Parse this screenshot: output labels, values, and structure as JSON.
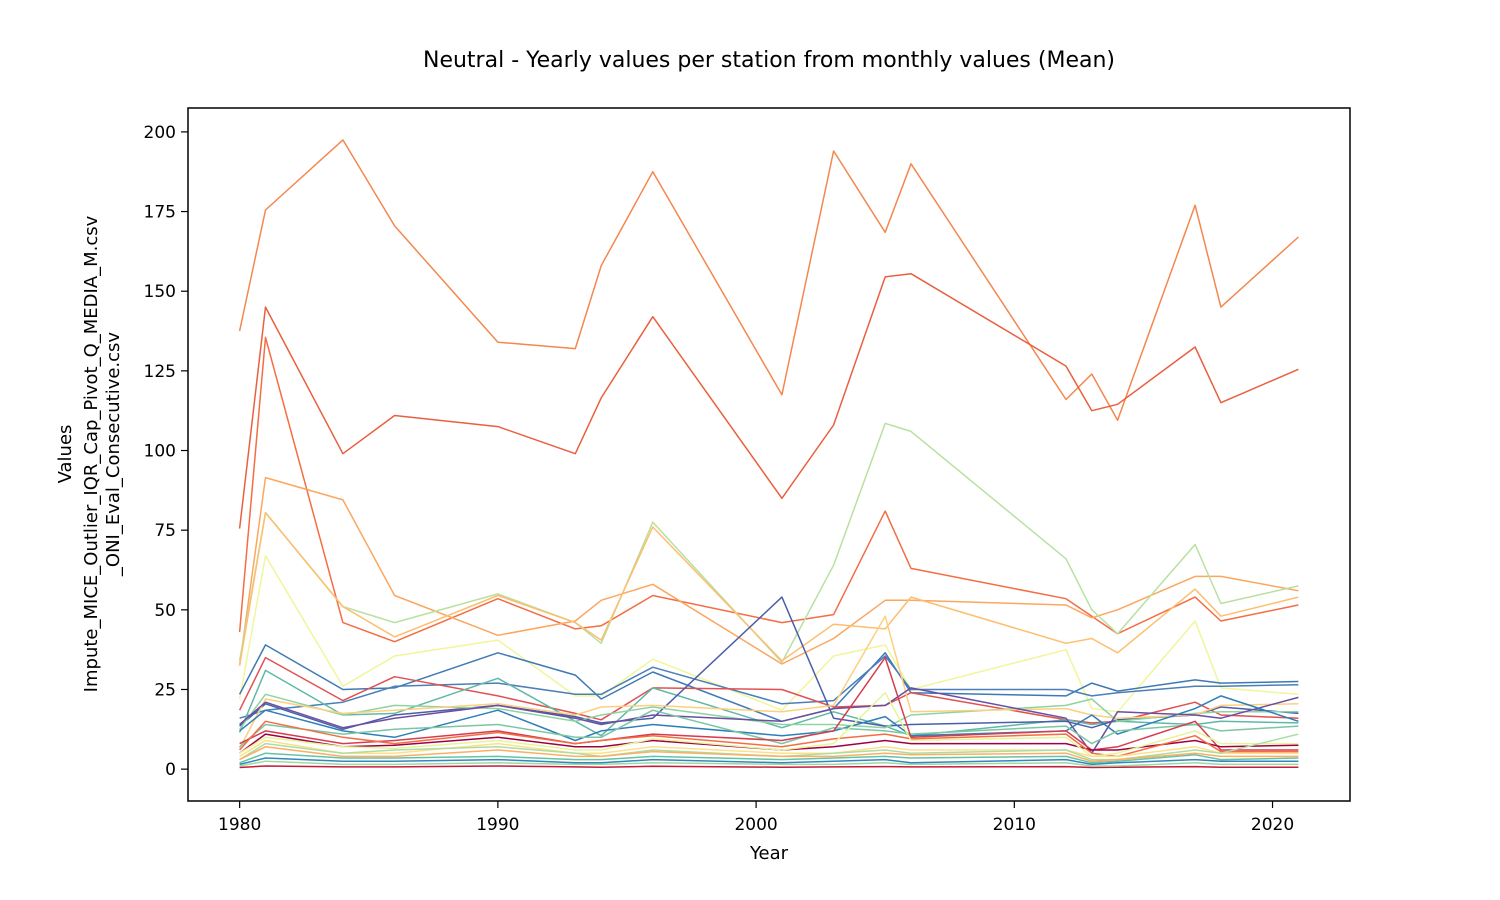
{
  "chart_data": {
    "type": "line",
    "title": "Neutral - Yearly values per station from monthly values (Mean)",
    "xlabel": "Year",
    "ylabel": [
      "Values",
      "Impute_MICE_Outlier_IQR_Cap_Pivot_Q_MEDIA_M.csv",
      "_ONI_Eval_Consecutive.csv"
    ],
    "xlim": [
      1978,
      2023
    ],
    "ylim": [
      -10,
      207.5
    ],
    "xticks": [
      1980,
      1990,
      2000,
      2010,
      2020
    ],
    "yticks": [
      0,
      25,
      50,
      75,
      100,
      125,
      150,
      175,
      200
    ],
    "grid": false,
    "legend": "none",
    "x": [
      1980,
      1981,
      1984,
      1986,
      1990,
      1993,
      1994,
      1996,
      2001,
      2003,
      2005,
      2006,
      2012,
      2013,
      2014,
      2017,
      2018,
      2021
    ],
    "series": [
      {
        "color": "#f4874f",
        "values": [
          137.5,
          175.5,
          197.5,
          170.5,
          134,
          132,
          158,
          187.5,
          117.5,
          194,
          168.5,
          190,
          116,
          124,
          109.5,
          177,
          145,
          167
        ]
      },
      {
        "color": "#e8603f",
        "values": [
          75.5,
          145,
          99,
          111,
          107.5,
          99,
          116.5,
          142,
          85,
          108,
          154.5,
          155.5,
          126.5,
          112.5,
          114.5,
          132.5,
          115,
          125.5
        ]
      },
      {
        "color": "#f46d43",
        "values": [
          43,
          135.5,
          46,
          40,
          53.5,
          44,
          45,
          54.5,
          46,
          48.5,
          81,
          63,
          53.5,
          48,
          42.5,
          54,
          46.5,
          51.5
        ]
      },
      {
        "color": "#fca65e",
        "values": [
          32.5,
          91.5,
          84.5,
          54.5,
          42,
          46.5,
          53,
          58,
          33,
          41,
          53,
          53,
          51.5,
          47.5,
          50,
          60.5,
          60.5,
          56
        ]
      },
      {
        "color": "#b9e0a1",
        "values": [
          34,
          80.5,
          51,
          46,
          55,
          46,
          39.5,
          77.5,
          33.5,
          64,
          108.5,
          106,
          66,
          50,
          42.5,
          70.5,
          52,
          57.5
        ]
      },
      {
        "color": "#fdbe6e",
        "values": [
          32.5,
          80.5,
          51,
          41.5,
          54.5,
          46,
          40.5,
          76,
          34,
          45.5,
          44,
          54,
          39.5,
          41,
          36.5,
          56.5,
          48,
          54
        ]
      },
      {
        "color": "#f1f59b",
        "values": [
          22,
          67,
          26,
          35.5,
          40.5,
          23,
          23,
          34.5,
          18.5,
          35.5,
          39,
          25,
          37.5,
          19,
          18,
          46.5,
          25.5,
          23.5
        ]
      },
      {
        "color": "#3f79b5",
        "values": [
          23.5,
          39,
          25,
          25.5,
          36.5,
          29.5,
          22,
          30.5,
          15,
          19,
          36.5,
          24,
          23,
          27,
          24.5,
          28,
          27,
          27.5
        ]
      },
      {
        "color": "#4a7fb8",
        "values": [
          16,
          18.5,
          21,
          26,
          27,
          23.5,
          23.5,
          32,
          20.5,
          21.5,
          35.5,
          25,
          25,
          23,
          24,
          26,
          26,
          26.5
        ]
      },
      {
        "color": "#e05252",
        "values": [
          18.5,
          35,
          21.5,
          29,
          23,
          17.5,
          15.5,
          25.5,
          25,
          19.5,
          20,
          24,
          15.5,
          14.5,
          15,
          21,
          17,
          16
        ]
      },
      {
        "color": "#5fb9a6",
        "values": [
          11.5,
          31,
          17,
          17.5,
          28.5,
          15,
          10.5,
          25.5,
          13,
          18,
          13.5,
          10.5,
          15.5,
          14,
          15,
          14,
          15,
          14.5
        ]
      },
      {
        "color": "#4c5ea8",
        "values": [
          13.5,
          20.5,
          12.5,
          17,
          20,
          16.5,
          14.5,
          16,
          54,
          16,
          13.5,
          14,
          15,
          13,
          15.5,
          17,
          19.5,
          17.5
        ]
      },
      {
        "color": "#8fd3a4",
        "values": [
          12.5,
          23.5,
          17,
          20,
          19,
          15,
          17,
          19.5,
          14,
          14,
          13,
          17,
          20,
          22,
          15,
          17.5,
          18,
          18
        ]
      },
      {
        "color": "#fdd07f",
        "values": [
          6.5,
          22,
          17.5,
          18.5,
          20.5,
          17,
          19.5,
          20,
          18,
          20,
          48,
          18,
          19,
          17,
          16,
          17,
          20,
          20.5
        ]
      },
      {
        "color": "#6a4fa0",
        "values": [
          14,
          21,
          13,
          16,
          20,
          16,
          14,
          17,
          15,
          19,
          20,
          25.5,
          16,
          5,
          18,
          17,
          16,
          22.5
        ]
      },
      {
        "color": "#2e7fb8",
        "values": [
          12,
          18.5,
          12,
          10,
          18.5,
          9,
          12,
          14,
          10.5,
          12,
          16.5,
          10.5,
          12,
          17,
          11,
          19,
          23,
          15
        ]
      },
      {
        "color": "#7cc6a4",
        "values": [
          7,
          14,
          11,
          12.5,
          14,
          10,
          10,
          18.5,
          8,
          13,
          12,
          11,
          13.5,
          8,
          12,
          14,
          12,
          13.5
        ]
      },
      {
        "color": "#d53e4f",
        "values": [
          8,
          12,
          8,
          9,
          12,
          8,
          9,
          11,
          9,
          12,
          35,
          10,
          12,
          6,
          7,
          15,
          6,
          6
        ]
      },
      {
        "color": "#9e0142",
        "values": [
          5,
          11,
          7,
          7.5,
          10,
          7,
          7,
          9,
          6,
          7,
          9,
          8,
          8,
          6,
          6,
          9,
          7,
          7.5
        ]
      },
      {
        "color": "#f46d43",
        "values": [
          6,
          15,
          10,
          8,
          11.5,
          8,
          9,
          10.5,
          7,
          9.5,
          11,
          9.5,
          11,
          5,
          4,
          10.5,
          5.5,
          5.5
        ]
      },
      {
        "color": "#e6f598",
        "values": [
          5,
          10,
          7,
          6.5,
          9,
          6,
          6,
          9.5,
          6,
          8,
          24,
          9,
          10,
          4,
          5,
          12,
          8,
          8
        ]
      },
      {
        "color": "#fee08b",
        "values": [
          4,
          9,
          5,
          5,
          8,
          5,
          5,
          7,
          5,
          5,
          7,
          6,
          6,
          4,
          4,
          7,
          5,
          5
        ]
      },
      {
        "color": "#abdda4",
        "values": [
          3,
          8,
          5,
          6,
          7,
          5,
          4,
          6,
          4,
          5,
          6,
          5,
          6,
          3,
          3,
          6,
          5,
          11
        ]
      },
      {
        "color": "#66c2a5",
        "values": [
          2,
          5,
          3.5,
          3.5,
          4,
          3,
          3,
          4,
          3,
          3.5,
          4,
          3.5,
          4,
          2,
          2.5,
          4.5,
          3,
          3.5
        ]
      },
      {
        "color": "#3288bd",
        "values": [
          1.5,
          3.5,
          2.5,
          2.5,
          3,
          2,
          2,
          3,
          2,
          2.5,
          3,
          2,
          3,
          1.5,
          2,
          3,
          2.5,
          2.5
        ]
      },
      {
        "color": "#c51b3d",
        "values": [
          0.5,
          1,
          0.7,
          0.7,
          1,
          0.7,
          0.6,
          0.9,
          0.6,
          0.7,
          0.8,
          0.7,
          0.8,
          0.5,
          0.6,
          0.8,
          0.6,
          0.6
        ]
      },
      {
        "color": "#fdae61",
        "values": [
          3,
          7,
          4,
          4,
          6,
          4,
          4,
          5.5,
          4,
          4,
          5,
          4.5,
          5,
          2.5,
          3,
          5,
          4,
          4
        ]
      },
      {
        "color": "#9ed9a0",
        "values": [
          1,
          2.5,
          1.5,
          1.5,
          2,
          1.5,
          1.5,
          2,
          1.5,
          1.5,
          2,
          1.5,
          2,
          1,
          1,
          2,
          1.5,
          1.5
        ]
      }
    ]
  }
}
